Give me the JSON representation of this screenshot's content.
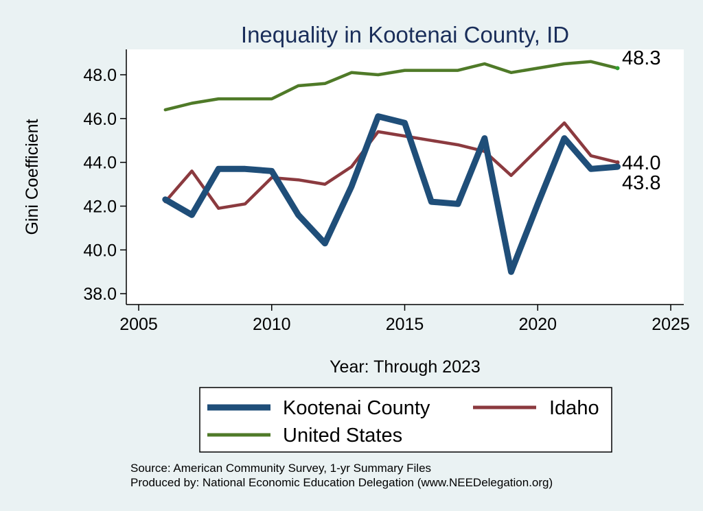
{
  "chart_data": {
    "type": "line",
    "title": "Inequality in Kootenai County, ID",
    "xlabel": "Year: Through 2023",
    "ylabel": "Gini Coefficient",
    "xlim": [
      2005,
      2025
    ],
    "ylim": [
      37.5,
      49.2
    ],
    "x_ticks": [
      2005,
      2010,
      2015,
      2020,
      2025
    ],
    "y_ticks": [
      38.0,
      40.0,
      42.0,
      44.0,
      46.0,
      48.0
    ],
    "x_tick_labels": [
      "2005",
      "2010",
      "2015",
      "2020",
      "2025"
    ],
    "y_tick_labels": [
      "38.0",
      "40.0",
      "42.0",
      "44.0",
      "46.0",
      "48.0"
    ],
    "x": [
      2006,
      2007,
      2008,
      2009,
      2010,
      2011,
      2012,
      2013,
      2014,
      2015,
      2016,
      2017,
      2018,
      2019,
      2020,
      2021,
      2022,
      2023
    ],
    "series": [
      {
        "name": "Kootenai County",
        "color": "#1f4e79",
        "values": [
          42.3,
          41.6,
          43.7,
          43.7,
          43.6,
          41.6,
          40.3,
          42.9,
          46.1,
          45.8,
          42.2,
          42.1,
          45.1,
          39.0,
          42.1,
          45.1,
          43.7,
          43.8
        ],
        "end_label": "43.8"
      },
      {
        "name": "Idaho",
        "color": "#8b3a3f",
        "values": [
          42.2,
          43.6,
          41.9,
          42.1,
          43.3,
          43.2,
          43.0,
          43.8,
          45.4,
          45.2,
          45.0,
          44.8,
          44.5,
          43.4,
          44.6,
          45.8,
          44.3,
          44.0
        ],
        "end_label": "44.0"
      },
      {
        "name": "United States",
        "color": "#4f7a28",
        "values": [
          46.4,
          46.7,
          46.9,
          46.9,
          46.9,
          47.5,
          47.6,
          48.1,
          48.0,
          48.2,
          48.2,
          48.2,
          48.5,
          48.1,
          48.3,
          48.5,
          48.6,
          48.3
        ],
        "end_label": "48.3"
      }
    ],
    "legend": {
      "placement": "bottom",
      "entries": [
        "Kootenai County",
        "Idaho",
        "United States"
      ]
    },
    "annotations": [
      "Source: American Community Survey, 1-yr Summary Files",
      "Produced by: National Economic Education Delegation (www.NEEDelegation.org)"
    ],
    "grid": false
  }
}
